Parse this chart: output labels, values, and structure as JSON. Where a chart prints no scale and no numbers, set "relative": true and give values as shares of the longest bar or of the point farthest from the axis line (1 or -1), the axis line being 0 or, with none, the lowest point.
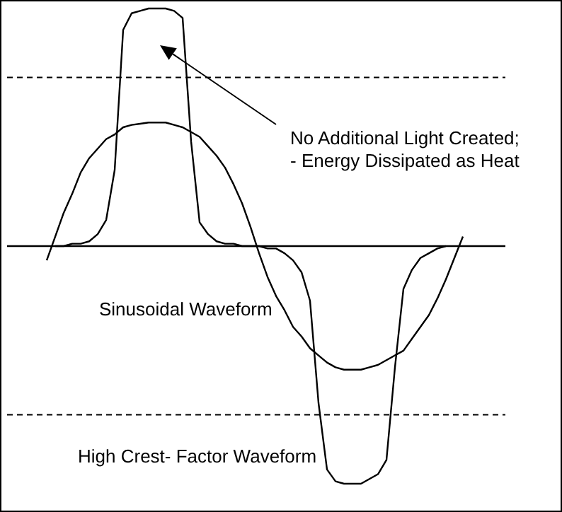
{
  "chart_data": {
    "type": "line",
    "relative": true,
    "tick_labels": false,
    "legend": false,
    "categories": [
      null,
      null,
      null,
      null,
      null,
      null,
      null,
      null,
      null,
      null,
      null,
      null,
      null,
      null,
      null,
      null,
      null,
      null,
      null,
      null,
      null,
      null,
      null,
      null,
      null,
      null,
      null,
      null,
      null,
      null,
      null,
      null,
      null,
      null,
      null,
      null,
      null,
      null,
      null,
      null,
      null,
      null,
      null,
      null,
      null,
      null,
      null,
      null,
      null,
      null
    ],
    "series": [
      {
        "name": "Sinusoidal Waveform",
        "color": "#000000",
        "values": [
          -0.06,
          0.04,
          0.14,
          0.22,
          0.31,
          0.37,
          0.41,
          0.45,
          0.47,
          0.5,
          0.51,
          0.515,
          0.52,
          0.52,
          0.52,
          0.51,
          0.5,
          0.48,
          0.46,
          0.42,
          0.38,
          0.33,
          0.26,
          0.18,
          0.08,
          -0.03,
          -0.13,
          -0.21,
          -0.27,
          -0.34,
          -0.38,
          -0.43,
          -0.46,
          -0.49,
          -0.51,
          -0.52,
          -0.52,
          -0.52,
          -0.51,
          -0.5,
          -0.48,
          -0.46,
          -0.44,
          -0.39,
          -0.34,
          -0.29,
          -0.22,
          -0.14,
          -0.05,
          0.04
        ]
      },
      {
        "name": "High Crest- Factor  Waveform",
        "color": "#000000",
        "values": [
          null,
          0,
          0,
          0.01,
          0.01,
          0.02,
          0.05,
          0.11,
          0.32,
          0.91,
          0.98,
          0.99,
          1,
          1,
          1,
          0.99,
          0.96,
          0.44,
          0.1,
          0.05,
          0.02,
          0.01,
          0.01,
          0,
          0,
          0,
          -0.01,
          -0.01,
          -0.03,
          -0.06,
          -0.11,
          -0.23,
          -0.66,
          -0.94,
          -0.99,
          -1,
          -1,
          -1,
          -0.98,
          -0.96,
          -0.9,
          -0.51,
          -0.18,
          -0.1,
          -0.05,
          -0.03,
          -0.01,
          0,
          null,
          null
        ]
      }
    ],
    "ref_lines": [
      {
        "axis": "y",
        "value": 0.71,
        "line_style": "dashed"
      },
      {
        "axis": "y",
        "value": -0.71,
        "line_style": "dashed"
      }
    ],
    "annotations": [
      "No Additional Light Created;\n- Energy Dissipated as Heat"
    ]
  }
}
